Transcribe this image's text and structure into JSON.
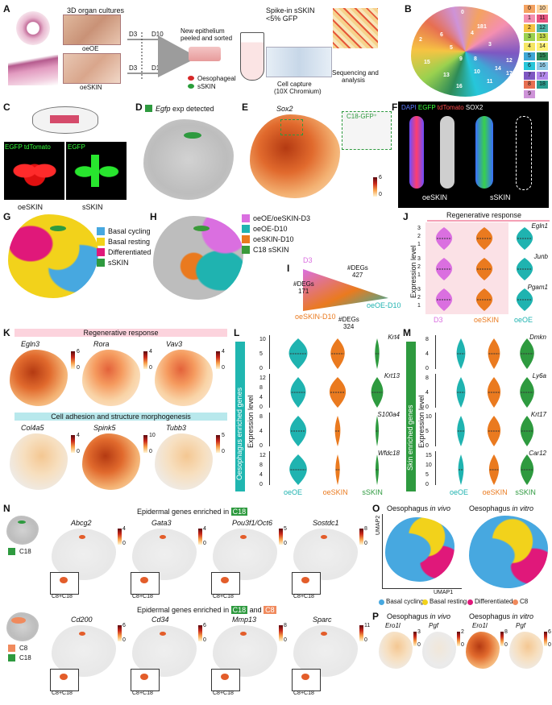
{
  "panels": {
    "A": "A",
    "B": "B",
    "C": "C",
    "D": "D",
    "E": "E",
    "F": "F",
    "G": "G",
    "H": "H",
    "I": "I",
    "J": "J",
    "K": "K",
    "L": "L",
    "M": "M",
    "N": "N",
    "O": "O",
    "P": "P"
  },
  "panel_a": {
    "title": "3D organ cultures",
    "oeoe": "oeOE",
    "oeskin": "oeSKIN",
    "d3_top": "D3",
    "d10_top": "D10",
    "d3_bottom": "D3",
    "d10_bottom": "D10",
    "new_epithelium": "New epithelium",
    "peeled": "peeled and sorted",
    "spike_in": "Spike-in sSKIN",
    "spike_pct": "<5% GFP",
    "oesophageal": "Oesophageal",
    "sskin": "sSKIN",
    "cell_capture": "Cell capture",
    "chromium": "(10X Chromium)",
    "sequencing": "Sequencing and",
    "analysis": "analysis"
  },
  "panel_b": {
    "clusters_left": [
      "0",
      "1",
      "2",
      "3",
      "4",
      "5",
      "6",
      "7",
      "8",
      "9"
    ],
    "clusters_right": [
      "10",
      "11",
      "12",
      "13",
      "14",
      "15",
      "16",
      "17",
      "18"
    ],
    "cluster_colors": [
      "#f4a261",
      "#f48fb1",
      "#f6c343",
      "#9ad14f",
      "#f5e663",
      "#3fa7d6",
      "#26c6da",
      "#7e57c2",
      "#e76f51",
      "#ce93d8",
      "#fdd29d",
      "#e75480",
      "#4bb3a7",
      "#c4d94a",
      "#fff176",
      "#2e8b57",
      "#8ecae6",
      "#b388eb",
      "#2a9d8f"
    ],
    "umap_labels": [
      "0",
      "1",
      "2",
      "3",
      "4",
      "5",
      "6",
      "7",
      "8",
      "9",
      "10",
      "11",
      "12",
      "13",
      "14",
      "15",
      "16",
      "17",
      "18"
    ]
  },
  "panel_c": {
    "left_top": "EGFP tdTomato",
    "right_top": "EGFP",
    "left_bottom": "oeSKIN",
    "right_bottom": "sSKIN"
  },
  "panel_d": {
    "gene": "Egfp",
    "suffix": " exp detected"
  },
  "panel_e": {
    "gene": "Sox2",
    "inset_label": "C18-GFP⁺",
    "cmax": "6",
    "cmin": "0"
  },
  "panel_f": {
    "dapi": "DAPI",
    "egfp": "EGFP",
    "tdtomato": "tdTomato",
    "sox2": "SOX2",
    "left": "oeSKIN",
    "right": "sSKIN"
  },
  "panel_g": {
    "legend": [
      {
        "label": "Basal cycling",
        "color": "#47a8e0"
      },
      {
        "label": "Basal resting",
        "color": "#f2d21b"
      },
      {
        "label": "Differentiated",
        "color": "#e0187a"
      },
      {
        "label": "sSKIN",
        "color": "#2e9a3f"
      }
    ]
  },
  "panel_h": {
    "legend": [
      {
        "label": "oeOE/oeSKIN-D3",
        "color": "#da6fe0"
      },
      {
        "label": "oeOE-D10",
        "color": "#1fb3b0"
      },
      {
        "label": "oeSKIN-D10",
        "color": "#ea7a1f"
      },
      {
        "label": "C18 sSKIN",
        "color": "#3a9a3a"
      }
    ]
  },
  "panel_i": {
    "d3": "D3",
    "degs_top": "#DEGs",
    "degs_top_n": "427",
    "degs_left": "#DEGs",
    "degs_left_n": "171",
    "degs_bottom": "#DEGs",
    "degs_bottom_n": "324",
    "oeskin_d10": "oeSKIN-D10",
    "oeoe_d10": "oeOE-D10"
  },
  "panel_j": {
    "title": "Regenerative response",
    "ylabel": "Expression level",
    "genes": [
      "Egln1",
      "Junb",
      "Pgam1"
    ],
    "groups": [
      "D3",
      "oeSKIN",
      "oeOE"
    ],
    "group_colors": [
      "#da6fe0",
      "#ea7a1f",
      "#1fb3b0"
    ],
    "yticks": [
      [
        "3",
        "2",
        "1"
      ],
      [
        "3",
        "2",
        "1"
      ],
      [
        "3",
        "2",
        "1"
      ]
    ]
  },
  "panel_k": {
    "title_top": "Regenerative response",
    "title_bottom": "Cell adhesion and structure morphogenesis",
    "genes_top": [
      "Egln3",
      "Rora",
      "Vav3"
    ],
    "cmax_top": [
      "6",
      "4",
      "4"
    ],
    "genes_bottom": [
      "Col4a5",
      "Spink5",
      "Tubb3"
    ],
    "cmax_bottom": [
      "4",
      "10",
      "5"
    ],
    "cmin": "0"
  },
  "panel_l": {
    "side_label": "Oesophagus enriched genes",
    "ylabel": "Expression level",
    "genes": [
      "Krt4",
      "Krt13",
      "S100a4",
      "Wfdc18"
    ],
    "yticks": [
      [
        "10",
        "5",
        "0"
      ],
      [
        "12",
        "8",
        "4",
        "0"
      ],
      [
        "8",
        "4",
        "0"
      ],
      [
        "12",
        "8",
        "4",
        "0"
      ]
    ],
    "groups": [
      "oeOE",
      "oeSKIN",
      "sSKIN"
    ]
  },
  "panel_m": {
    "side_label": "Skin enriched genes",
    "ylabel": "Expression level",
    "genes": [
      "Dmkn",
      "Ly6a",
      "Krt17",
      "Car12"
    ],
    "yticks": [
      [
        "8",
        "4",
        "0"
      ],
      [
        "8",
        "4",
        "0"
      ],
      [
        "10",
        "5",
        "0"
      ],
      [
        "15",
        "10",
        "5",
        "0"
      ]
    ],
    "groups": [
      "oeOE",
      "oeSKIN",
      "sSKIN"
    ]
  },
  "panel_n": {
    "title_top_prefix": "Epidermal genes enriched in ",
    "c18": "C18",
    "title_bottom_prefix": "Epidermal genes enriched in ",
    "and": " and ",
    "c8": "C8",
    "genes_top": [
      "Abcg2",
      "Gata3",
      "Pou3f1/Oct6",
      "Sostdc1"
    ],
    "cmax_top": [
      "4",
      "4",
      "5",
      "8"
    ],
    "genes_bottom": [
      "Cd200",
      "Cd34",
      "Mmp13",
      "Sparc"
    ],
    "cmax_bottom": [
      "6",
      "6",
      "8",
      "11"
    ],
    "cmin": "0",
    "inset": "C8+C18",
    "legend_top": "C18",
    "legend_bottom": [
      "C8",
      "C18"
    ]
  },
  "panel_o": {
    "left_title_a": "Oesophagus ",
    "left_title_b": "in vivo",
    "right_title_a": "Oesophagus ",
    "right_title_b": "in vitro",
    "umap2": "UMAP2",
    "umap1": "UMAP1",
    "legend": [
      {
        "label": "Basal cycling",
        "color": "#47a8e0"
      },
      {
        "label": "Basal resting",
        "color": "#f2d21b"
      },
      {
        "label": "Differentiated",
        "color": "#e0187a"
      },
      {
        "label": "C8",
        "color": "#f08a5d"
      }
    ]
  },
  "panel_p": {
    "left_title_a": "Oesophagus ",
    "left_title_b": "in vivo",
    "right_title_a": "Oesophagus ",
    "right_title_b": "in vitro",
    "genes": [
      "Ero1l",
      "Pgf",
      "Ero1l",
      "Pgf"
    ],
    "cmax": [
      "3",
      "2",
      "8",
      "6"
    ],
    "cmin": "0"
  }
}
